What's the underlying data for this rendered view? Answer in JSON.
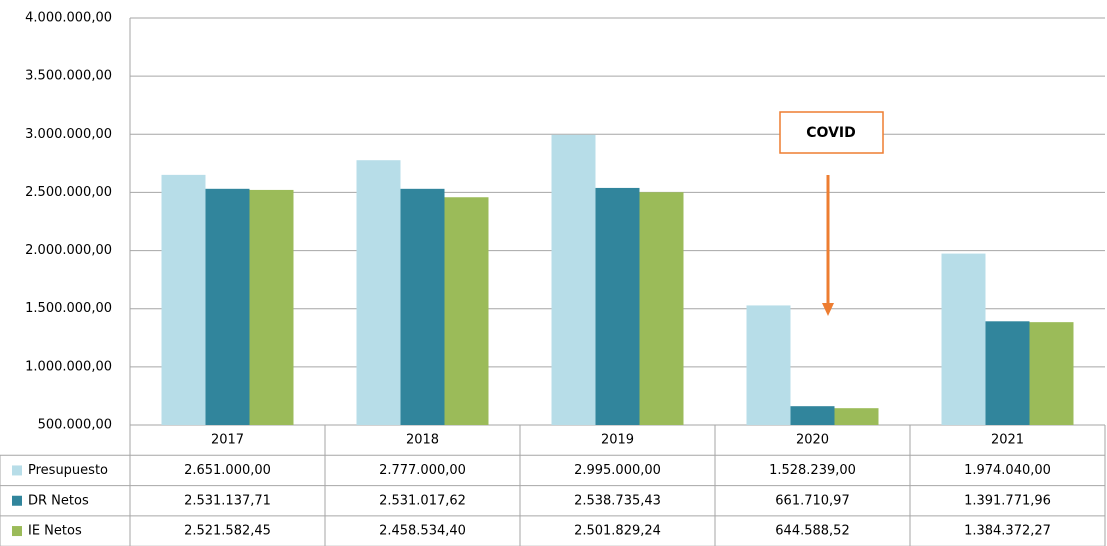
{
  "chart_data": {
    "type": "bar",
    "annotation": "COVID",
    "categories": [
      "2017",
      "2018",
      "2019",
      "2020",
      "2021"
    ],
    "series": [
      {
        "name": "Presupuesto",
        "color": "#b7dde8",
        "values": [
          2651000,
          2777000,
          2995000,
          1528239,
          1974040
        ],
        "value_labels": [
          "2.651.000,00",
          "2.777.000,00",
          "2.995.000,00",
          "1.528.239,00",
          "1.974.040,00"
        ]
      },
      {
        "name": "DR Netos",
        "color": "#31859c",
        "values": [
          2531137.71,
          2531017.62,
          2538735.43,
          661710.97,
          1391771.96
        ],
        "value_labels": [
          "2.531.137,71",
          "2.531.017,62",
          "2.538.735,43",
          "661.710,97",
          "1.391.771,96"
        ]
      },
      {
        "name": "IE Netos",
        "color": "#9bbb59",
        "values": [
          2521582.45,
          2458534.4,
          2501829.24,
          644588.52,
          1384372.27
        ],
        "value_labels": [
          "2.521.582,45",
          "2.458.534,40",
          "2.501.829,24",
          "644.588,52",
          "1.384.372,27"
        ]
      }
    ],
    "ylim": [
      500000,
      4000000
    ],
    "yticks": [
      {
        "value": 500000,
        "label": "500.000,00"
      },
      {
        "value": 1000000,
        "label": "1.000.000,00"
      },
      {
        "value": 1500000,
        "label": "1.500.000,00"
      },
      {
        "value": 2000000,
        "label": "2.000.000,00"
      },
      {
        "value": 2500000,
        "label": "2.500.000,00"
      },
      {
        "value": 3000000,
        "label": "3.000.000,00"
      },
      {
        "value": 3500000,
        "label": "3.500.000,00"
      },
      {
        "value": 4000000,
        "label": "4.000.000,00"
      }
    ],
    "grid": true
  }
}
